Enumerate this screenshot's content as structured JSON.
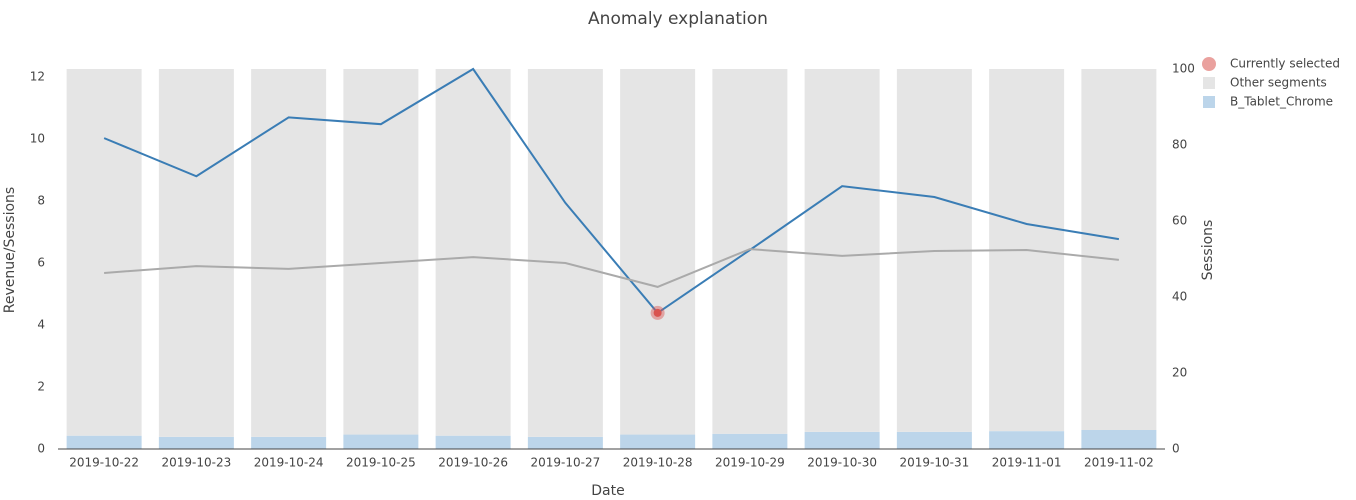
{
  "chart_data": {
    "type": "bar-line",
    "title": "Anomaly explanation",
    "x_label": "Date",
    "y_label": "Revenue/Sessions",
    "y2_label": "Sessions",
    "categories": [
      "2019-10-22",
      "2019-10-23",
      "2019-10-24",
      "2019-10-25",
      "2019-10-26",
      "2019-10-27",
      "2019-10-28",
      "2019-10-29",
      "2019-10-30",
      "2019-10-31",
      "2019-11-01",
      "2019-11-02"
    ],
    "ylim": [
      0,
      12.26
    ],
    "yticks": [
      0,
      2,
      4,
      6,
      8,
      10,
      12
    ],
    "y2lim": [
      0,
      100
    ],
    "y2ticks": [
      0,
      20,
      40,
      60,
      80,
      100
    ],
    "series": [
      {
        "name": "B_Tablet_Chrome",
        "color": "#bcd5ea",
        "axis": "y2",
        "kind": "bar",
        "values": [
          3.5,
          3.2,
          3.2,
          3.8,
          3.5,
          3.2,
          3.8,
          4.0,
          4.5,
          4.5,
          4.7,
          5.0
        ]
      },
      {
        "name": "Other segments",
        "color": "#e5e5e5",
        "axis": "y2",
        "kind": "bar",
        "values": [
          96.5,
          96.8,
          96.8,
          96.2,
          96.5,
          96.8,
          96.2,
          96.0,
          95.5,
          95.5,
          95.3,
          95.0
        ]
      }
    ],
    "lines": [
      {
        "color": "#3a7db5",
        "values": [
          10.03,
          8.8,
          10.7,
          10.48,
          12.26,
          7.94,
          4.39,
          6.42,
          8.48,
          8.13,
          7.26,
          6.77
        ]
      },
      {
        "color": "#aaaaaa",
        "values": [
          5.68,
          5.9,
          5.81,
          6.0,
          6.19,
          6.0,
          5.23,
          6.45,
          6.23,
          6.39,
          6.42,
          6.1
        ]
      }
    ],
    "selected": {
      "name": "Currently selected",
      "color": "#d9534f",
      "x": "2019-10-28",
      "value": 4.39
    }
  }
}
